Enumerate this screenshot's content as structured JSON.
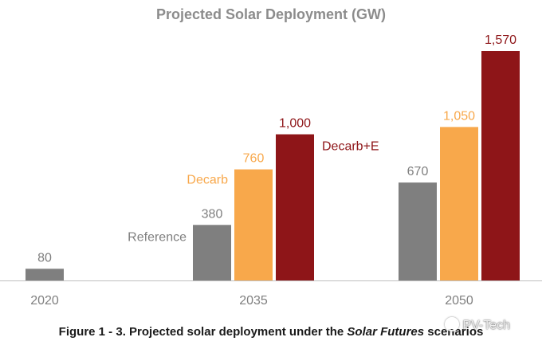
{
  "chart_data": {
    "type": "bar",
    "title": "Projected Solar Deployment (GW)",
    "xlabel": "",
    "ylabel": "",
    "ylim": [
      0,
      1650
    ],
    "grid": false,
    "legend": "inline-labels",
    "groups": [
      {
        "category": "2020",
        "bars": [
          {
            "series": "Reference",
            "value": 80,
            "label": "80"
          }
        ]
      },
      {
        "category": "2035",
        "bars": [
          {
            "series": "Reference",
            "value": 380,
            "label": "380"
          },
          {
            "series": "Decarb",
            "value": 760,
            "label": "760"
          },
          {
            "series": "Decarb+E",
            "value": 1000,
            "label": "1,000"
          }
        ]
      },
      {
        "category": "2050",
        "bars": [
          {
            "series": "Reference",
            "value": 670,
            "label": "670"
          },
          {
            "series": "Decarb",
            "value": 1050,
            "label": "1,050"
          },
          {
            "series": "Decarb+E",
            "value": 1570,
            "label": "1,570"
          }
        ]
      }
    ],
    "series": [
      {
        "name": "Reference",
        "color": "#7f7f7f",
        "label_color": "#7f7f7f"
      },
      {
        "name": "Decarb",
        "color": "#f8a84b",
        "label_color": "#f8a84b"
      },
      {
        "name": "Decarb+E",
        "color": "#8e1518",
        "label_color": "#8e1518"
      }
    ],
    "title_color": "#8c8c8c",
    "tick_label_color": "#7f7f7f",
    "axis_color": "#bfbfbf"
  },
  "caption": {
    "prefix": "Figure 1 - 3. Projected solar deployment under the ",
    "italic": "Solar Futures",
    "suffix": " scenarios"
  },
  "watermark": {
    "text": "PV-Tech",
    "icon": "pv-tech-logo-icon"
  }
}
